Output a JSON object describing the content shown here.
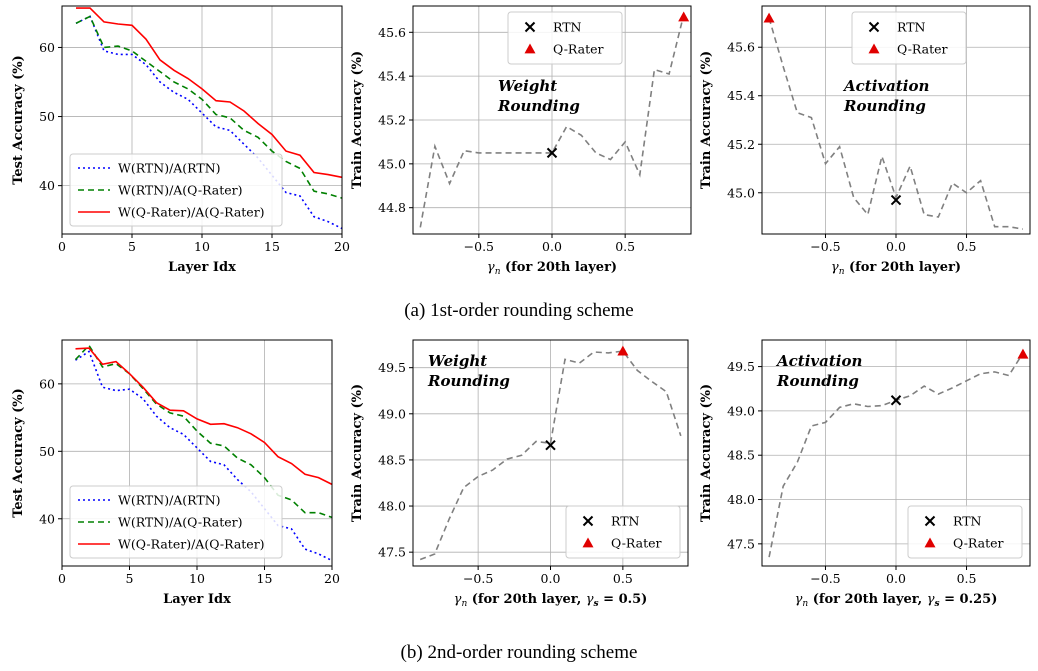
{
  "captions": {
    "a": "(a) 1st-order rounding scheme",
    "b": "(b) 2nd-order rounding scheme"
  },
  "colors": {
    "rtn": "#0000ff",
    "rtn_qrater": "#008000",
    "qrater": "#ff0000",
    "sweep": "#808080",
    "marker_x": "#000000",
    "marker_tri": "#e00000",
    "grid": "#b0b0b0"
  },
  "chart_data": [
    {
      "id": "a-left",
      "type": "line",
      "xlabel": "Layer Idx",
      "ylabel": "Test Accuracy (%)",
      "xlim": [
        0,
        20
      ],
      "ylim": [
        33,
        66
      ],
      "xticks": [
        0,
        5,
        10,
        15,
        20
      ],
      "yticks": [
        40,
        50,
        60
      ],
      "grid": true,
      "legend": "lower-left",
      "x": [
        1,
        2,
        3,
        4,
        5,
        6,
        7,
        8,
        9,
        10,
        11,
        12,
        13,
        14,
        15,
        16,
        17,
        18,
        19,
        20
      ],
      "series": [
        {
          "name": "W(RTN)/A(RTN)",
          "style": "dotted",
          "color": "#0000ff",
          "values": [
            63.5,
            64.5,
            59.5,
            59.0,
            59.0,
            57.5,
            55.0,
            53.5,
            52.5,
            50.5,
            48.5,
            48.0,
            46.0,
            44.0,
            41.5,
            39.0,
            38.5,
            35.5,
            34.8,
            33.8
          ]
        },
        {
          "name": "W(RTN)/A(Q-Rater)",
          "style": "dashed",
          "color": "#008000",
          "values": [
            63.5,
            64.5,
            60.0,
            60.2,
            59.5,
            58.0,
            56.5,
            55.0,
            54.0,
            52.5,
            50.3,
            49.8,
            48.0,
            47.0,
            45.0,
            43.5,
            42.5,
            39.2,
            38.8,
            38.2
          ]
        },
        {
          "name": "W(Q-Rater)/A(Q-Rater)",
          "style": "solid",
          "color": "#ff0000",
          "values": [
            65.7,
            65.7,
            63.7,
            63.4,
            63.2,
            61.2,
            58.2,
            56.7,
            55.5,
            54.0,
            52.3,
            52.1,
            50.8,
            49.0,
            47.4,
            45.0,
            44.4,
            41.9,
            41.6,
            41.2
          ]
        }
      ]
    },
    {
      "id": "a-mid",
      "type": "line",
      "xlabel": "γn (for 20th layer)",
      "ylabel": "Train Accuracy (%)",
      "xlim": [
        -0.95,
        0.95
      ],
      "ylim": [
        44.68,
        45.72
      ],
      "xticks": [
        -0.5,
        0.0,
        0.5
      ],
      "yticks": [
        44.8,
        45.0,
        45.2,
        45.4,
        45.6
      ],
      "grid": true,
      "legend": "top-center",
      "annotation": [
        "Weight",
        "Rounding"
      ],
      "x": [
        -0.9,
        -0.8,
        -0.7,
        -0.6,
        -0.5,
        -0.4,
        -0.3,
        -0.2,
        -0.1,
        0.0,
        0.1,
        0.2,
        0.3,
        0.4,
        0.5,
        0.6,
        0.7,
        0.8,
        0.9
      ],
      "series": [
        {
          "name": "sweep",
          "style": "dashed",
          "color": "#808080",
          "values": [
            44.71,
            45.08,
            44.91,
            45.06,
            45.05,
            45.05,
            45.05,
            45.05,
            45.05,
            45.05,
            45.17,
            45.13,
            45.05,
            45.02,
            45.1,
            44.95,
            45.43,
            45.41,
            45.68
          ]
        }
      ],
      "markers": [
        {
          "name": "RTN",
          "shape": "x",
          "x": 0.0,
          "y": 45.05
        },
        {
          "name": "Q-Rater",
          "shape": "triangle",
          "x": 0.9,
          "y": 45.67
        }
      ]
    },
    {
      "id": "a-right",
      "type": "line",
      "xlabel": "γn (for 20th layer)",
      "ylabel": "Train Accuracy (%)",
      "xlim": [
        -0.95,
        0.95
      ],
      "ylim": [
        44.83,
        45.77
      ],
      "xticks": [
        -0.5,
        0.0,
        0.5
      ],
      "yticks": [
        45.0,
        45.2,
        45.4,
        45.6
      ],
      "grid": true,
      "legend": "top-center",
      "annotation": [
        "Activation",
        "Rounding"
      ],
      "x": [
        -0.9,
        -0.8,
        -0.7,
        -0.6,
        -0.5,
        -0.4,
        -0.3,
        -0.2,
        -0.1,
        0.0,
        0.1,
        0.2,
        0.3,
        0.4,
        0.5,
        0.6,
        0.7,
        0.8,
        0.9
      ],
      "series": [
        {
          "name": "sweep",
          "style": "dashed",
          "color": "#808080",
          "values": [
            45.72,
            45.52,
            45.33,
            45.31,
            45.12,
            45.19,
            44.98,
            44.91,
            45.15,
            44.98,
            45.11,
            44.91,
            44.9,
            45.04,
            45.0,
            45.05,
            44.86,
            44.86,
            44.85
          ]
        }
      ],
      "markers": [
        {
          "name": "RTN",
          "shape": "x",
          "x": 0.0,
          "y": 44.97
        },
        {
          "name": "Q-Rater",
          "shape": "triangle",
          "x": -0.9,
          "y": 45.72
        }
      ]
    },
    {
      "id": "b-left",
      "type": "line",
      "xlabel": "Layer Idx",
      "ylabel": "Test Accuracy (%)",
      "xlim": [
        0,
        20
      ],
      "ylim": [
        33,
        66.5
      ],
      "xticks": [
        0,
        5,
        10,
        15,
        20
      ],
      "yticks": [
        40,
        50,
        60
      ],
      "grid": true,
      "legend": "lower-left",
      "x": [
        1,
        2,
        3,
        4,
        5,
        6,
        7,
        8,
        9,
        10,
        11,
        12,
        13,
        14,
        15,
        16,
        17,
        18,
        19,
        20
      ],
      "series": [
        {
          "name": "W(RTN)/A(RTN)",
          "style": "dotted",
          "color": "#0000ff",
          "values": [
            63.5,
            64.8,
            59.5,
            59.0,
            59.2,
            57.8,
            55.2,
            53.5,
            52.5,
            50.5,
            48.5,
            48.0,
            45.8,
            44.0,
            41.5,
            39.0,
            38.5,
            35.5,
            34.8,
            33.8
          ]
        },
        {
          "name": "W(RTN)/A(Q-Rater)",
          "style": "dashed",
          "color": "#008000",
          "values": [
            63.6,
            65.7,
            62.5,
            63.0,
            61.5,
            59.3,
            57.0,
            55.7,
            55.2,
            53.0,
            51.2,
            50.8,
            49.0,
            48.0,
            46.1,
            43.5,
            42.8,
            40.9,
            40.9,
            40.2
          ]
        },
        {
          "name": "W(Q-Rater)/A(Q-Rater)",
          "style": "solid",
          "color": "#ff0000",
          "values": [
            65.2,
            65.3,
            62.9,
            63.3,
            61.5,
            59.5,
            57.2,
            56.1,
            56.0,
            54.8,
            54.0,
            54.1,
            53.5,
            52.6,
            51.3,
            49.2,
            48.2,
            46.6,
            46.1,
            45.1
          ]
        }
      ]
    },
    {
      "id": "b-mid",
      "type": "line",
      "xlabel": "γn (for 20th layer, γs = 0.5)",
      "ylabel": "Train Accuracy (%)",
      "xlim": [
        -0.95,
        0.95
      ],
      "ylim": [
        47.35,
        49.8
      ],
      "xticks": [
        -0.5,
        0.0,
        0.5
      ],
      "yticks": [
        47.5,
        48.0,
        48.5,
        49.0,
        49.5
      ],
      "grid": true,
      "legend": "bottom-right",
      "annotation": [
        "Weight",
        "Rounding"
      ],
      "x": [
        -0.9,
        -0.8,
        -0.7,
        -0.6,
        -0.5,
        -0.4,
        -0.3,
        -0.2,
        -0.1,
        0.0,
        0.1,
        0.2,
        0.3,
        0.4,
        0.5,
        0.6,
        0.7,
        0.8,
        0.9
      ],
      "series": [
        {
          "name": "sweep",
          "style": "dashed",
          "color": "#808080",
          "values": [
            47.42,
            47.48,
            47.86,
            48.2,
            48.32,
            48.39,
            48.51,
            48.55,
            48.7,
            48.68,
            49.59,
            49.55,
            49.67,
            49.66,
            49.68,
            49.47,
            49.35,
            49.24,
            48.76
          ]
        }
      ],
      "markers": [
        {
          "name": "RTN",
          "shape": "x",
          "x": 0.0,
          "y": 48.66
        },
        {
          "name": "Q-Rater",
          "shape": "triangle",
          "x": 0.5,
          "y": 49.68
        }
      ]
    },
    {
      "id": "b-right",
      "type": "line",
      "xlabel": "γn (for 20th layer, γs = 0.25)",
      "ylabel": "Train Accuracy (%)",
      "xlim": [
        -0.95,
        0.95
      ],
      "ylim": [
        47.25,
        49.8
      ],
      "xticks": [
        -0.5,
        0.0,
        0.5
      ],
      "yticks": [
        47.5,
        48.0,
        48.5,
        49.0,
        49.5
      ],
      "grid": true,
      "legend": "bottom-right",
      "annotation": [
        "Activation",
        "Rounding"
      ],
      "x": [
        -0.9,
        -0.8,
        -0.7,
        -0.6,
        -0.5,
        -0.4,
        -0.3,
        -0.2,
        -0.1,
        0.0,
        0.1,
        0.2,
        0.3,
        0.4,
        0.5,
        0.6,
        0.7,
        0.8,
        0.9
      ],
      "series": [
        {
          "name": "sweep",
          "style": "dashed",
          "color": "#808080",
          "values": [
            47.35,
            48.15,
            48.42,
            48.83,
            48.87,
            49.04,
            49.08,
            49.05,
            49.06,
            49.12,
            49.17,
            49.28,
            49.19,
            49.26,
            49.34,
            49.42,
            49.44,
            49.4,
            49.65
          ]
        }
      ],
      "markers": [
        {
          "name": "RTN",
          "shape": "x",
          "x": 0.0,
          "y": 49.12
        },
        {
          "name": "Q-Rater",
          "shape": "triangle",
          "x": 0.9,
          "y": 49.64
        }
      ]
    }
  ]
}
